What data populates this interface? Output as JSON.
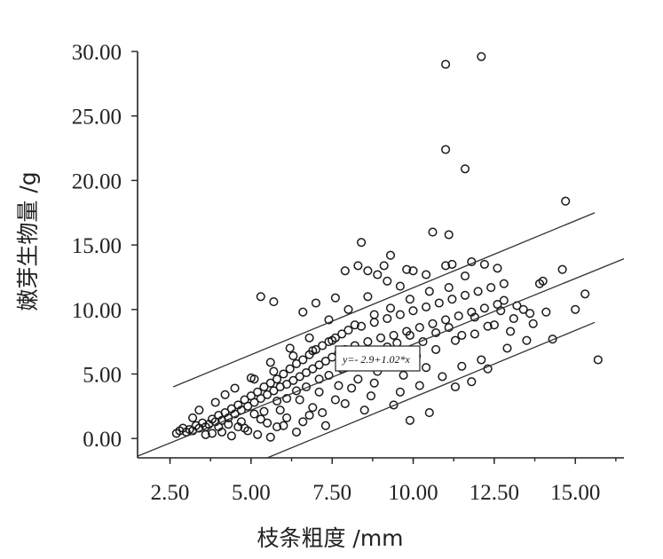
{
  "chart_data": {
    "type": "scatter",
    "title": "",
    "xlabel": "枝条粗度 /mm",
    "ylabel": "嫩芽生物量 /g",
    "xlim": [
      1.5,
      16.5
    ],
    "ylim": [
      -1.5,
      30.0
    ],
    "x_ticks": [
      "2.50",
      "5.00",
      "7.50",
      "10.00",
      "12.50",
      "15.00"
    ],
    "y_ticks": [
      "0.00",
      "5.00",
      "10.00",
      "15.00",
      "20.00",
      "25.00",
      "30.00"
    ],
    "grid": false,
    "legend": "none",
    "annotation": "y=- 2.9+1.02*x",
    "fit": {
      "intercept": -2.9,
      "slope": 1.02,
      "x_range": [
        1.5,
        16.5
      ]
    },
    "prediction_band": {
      "lower": {
        "x": [
          5.5,
          15.6
        ],
        "y": [
          -1.5,
          9.0
        ]
      },
      "upper": {
        "x": [
          2.6,
          15.6
        ],
        "y": [
          4.0,
          17.5
        ]
      }
    },
    "series": [
      {
        "points": [
          [
            2.7,
            0.4
          ],
          [
            2.8,
            0.6
          ],
          [
            2.9,
            0.8
          ],
          [
            3.0,
            0.5
          ],
          [
            3.1,
            0.7
          ],
          [
            3.2,
            0.6
          ],
          [
            3.3,
            1.0
          ],
          [
            3.4,
            0.8
          ],
          [
            3.5,
            1.2
          ],
          [
            3.6,
            0.9
          ],
          [
            3.7,
            1.1
          ],
          [
            3.8,
            1.5
          ],
          [
            3.9,
            1.3
          ],
          [
            4.0,
            1.8
          ],
          [
            4.1,
            1.4
          ],
          [
            4.2,
            2.0
          ],
          [
            4.3,
            1.6
          ],
          [
            4.4,
            2.3
          ],
          [
            4.5,
            1.9
          ],
          [
            4.6,
            2.6
          ],
          [
            4.7,
            2.2
          ],
          [
            4.8,
            3.0
          ],
          [
            4.9,
            2.5
          ],
          [
            5.0,
            3.3
          ],
          [
            5.1,
            2.8
          ],
          [
            5.2,
            3.6
          ],
          [
            5.3,
            3.1
          ],
          [
            5.4,
            4.0
          ],
          [
            5.5,
            3.4
          ],
          [
            5.6,
            4.3
          ],
          [
            5.7,
            3.7
          ],
          [
            5.8,
            4.6
          ],
          [
            5.9,
            4.0
          ],
          [
            6.0,
            5.0
          ],
          [
            6.1,
            4.2
          ],
          [
            6.2,
            5.4
          ],
          [
            6.3,
            4.5
          ],
          [
            6.4,
            5.8
          ],
          [
            6.5,
            4.8
          ],
          [
            6.6,
            6.1
          ],
          [
            6.7,
            5.1
          ],
          [
            6.8,
            6.5
          ],
          [
            6.9,
            5.4
          ],
          [
            7.0,
            6.9
          ],
          [
            7.1,
            5.7
          ],
          [
            7.2,
            7.2
          ],
          [
            7.3,
            6.0
          ],
          [
            7.4,
            7.5
          ],
          [
            7.5,
            6.3
          ],
          [
            7.6,
            7.8
          ],
          [
            7.7,
            6.6
          ],
          [
            7.8,
            8.1
          ],
          [
            7.9,
            6.9
          ],
          [
            8.0,
            8.4
          ],
          [
            8.2,
            7.2
          ],
          [
            8.4,
            8.7
          ],
          [
            8.6,
            7.5
          ],
          [
            8.8,
            9.0
          ],
          [
            9.0,
            7.8
          ],
          [
            9.2,
            9.3
          ],
          [
            9.4,
            8.0
          ],
          [
            9.6,
            9.6
          ],
          [
            9.8,
            8.3
          ],
          [
            10.0,
            9.9
          ],
          [
            10.2,
            8.6
          ],
          [
            10.4,
            10.2
          ],
          [
            10.6,
            8.9
          ],
          [
            10.8,
            10.5
          ],
          [
            11.0,
            9.2
          ],
          [
            11.2,
            10.8
          ],
          [
            11.4,
            9.5
          ],
          [
            11.6,
            11.1
          ],
          [
            11.8,
            9.8
          ],
          [
            12.0,
            11.4
          ],
          [
            12.2,
            10.1
          ],
          [
            12.4,
            11.7
          ],
          [
            12.6,
            10.4
          ],
          [
            12.8,
            12.0
          ],
          [
            3.4,
            2.2
          ],
          [
            3.8,
            0.4
          ],
          [
            4.2,
            3.4
          ],
          [
            4.6,
            0.9
          ],
          [
            5.0,
            4.7
          ],
          [
            5.3,
            1.5
          ],
          [
            5.6,
            5.9
          ],
          [
            5.9,
            2.2
          ],
          [
            6.2,
            7.0
          ],
          [
            6.5,
            3.0
          ],
          [
            6.8,
            7.8
          ],
          [
            7.1,
            3.6
          ],
          [
            7.4,
            9.2
          ],
          [
            7.7,
            4.1
          ],
          [
            8.0,
            10.0
          ],
          [
            8.3,
            4.6
          ],
          [
            8.6,
            11.0
          ],
          [
            8.9,
            5.2
          ],
          [
            9.2,
            12.2
          ],
          [
            9.5,
            5.8
          ],
          [
            9.8,
            13.1
          ],
          [
            10.1,
            6.4
          ],
          [
            10.4,
            12.7
          ],
          [
            10.7,
            6.9
          ],
          [
            11.0,
            13.4
          ],
          [
            11.3,
            7.6
          ],
          [
            11.6,
            12.6
          ],
          [
            11.9,
            8.1
          ],
          [
            12.2,
            13.5
          ],
          [
            12.5,
            8.8
          ],
          [
            12.8,
            10.7
          ],
          [
            13.1,
            9.3
          ],
          [
            13.4,
            10.0
          ],
          [
            13.7,
            8.9
          ],
          [
            14.0,
            12.2
          ],
          [
            14.3,
            7.7
          ],
          [
            14.6,
            13.1
          ],
          [
            14.7,
            18.4
          ],
          [
            15.0,
            10.0
          ],
          [
            15.3,
            11.2
          ],
          [
            15.7,
            6.1
          ],
          [
            14.1,
            9.8
          ],
          [
            13.9,
            12.0
          ],
          [
            13.0,
            8.3
          ],
          [
            12.3,
            5.4
          ],
          [
            11.8,
            4.4
          ],
          [
            11.3,
            4.0
          ],
          [
            10.5,
            2.0
          ],
          [
            9.9,
            1.4
          ],
          [
            9.4,
            2.6
          ],
          [
            8.5,
            2.2
          ],
          [
            7.3,
            1.0
          ],
          [
            6.8,
            1.8
          ],
          [
            6.4,
            0.5
          ],
          [
            5.8,
            0.9
          ],
          [
            5.2,
            0.3
          ],
          [
            5.3,
            11.0
          ],
          [
            5.7,
            10.6
          ],
          [
            7.9,
            13.0
          ],
          [
            8.3,
            13.4
          ],
          [
            8.4,
            15.2
          ],
          [
            8.6,
            13.0
          ],
          [
            9.1,
            13.4
          ],
          [
            9.3,
            14.2
          ],
          [
            10.0,
            13.0
          ],
          [
            10.6,
            16.0
          ],
          [
            11.1,
            15.8
          ],
          [
            11.0,
            22.4
          ],
          [
            11.6,
            20.9
          ],
          [
            11.0,
            29.0
          ],
          [
            12.1,
            29.6
          ],
          [
            11.2,
            13.5
          ],
          [
            11.8,
            13.7
          ],
          [
            12.6,
            13.2
          ],
          [
            7.0,
            10.5
          ],
          [
            6.6,
            9.8
          ],
          [
            7.6,
            10.9
          ],
          [
            9.6,
            11.8
          ],
          [
            8.9,
            12.7
          ],
          [
            4.4,
            0.2
          ],
          [
            4.9,
            0.6
          ],
          [
            5.5,
            1.2
          ],
          [
            6.1,
            1.6
          ],
          [
            6.9,
            2.4
          ],
          [
            7.6,
            3.0
          ],
          [
            8.1,
            3.9
          ],
          [
            8.8,
            4.3
          ],
          [
            9.7,
            4.9
          ],
          [
            10.4,
            5.5
          ],
          [
            3.2,
            1.6
          ],
          [
            3.9,
            2.8
          ],
          [
            4.5,
            3.9
          ],
          [
            5.1,
            4.6
          ],
          [
            5.7,
            5.2
          ],
          [
            6.3,
            6.4
          ],
          [
            6.9,
            6.8
          ],
          [
            7.5,
            7.6
          ],
          [
            8.2,
            8.8
          ],
          [
            8.8,
            9.6
          ],
          [
            9.3,
            10.1
          ],
          [
            9.9,
            10.8
          ],
          [
            10.5,
            11.4
          ],
          [
            11.1,
            11.7
          ],
          [
            4.0,
            0.9
          ],
          [
            4.3,
            1.1
          ],
          [
            4.7,
            1.3
          ],
          [
            5.1,
            1.9
          ],
          [
            5.4,
            2.1
          ],
          [
            5.8,
            2.9
          ],
          [
            6.1,
            3.1
          ],
          [
            6.4,
            3.7
          ],
          [
            6.7,
            4.0
          ],
          [
            7.1,
            4.6
          ],
          [
            7.4,
            4.9
          ],
          [
            7.8,
            5.4
          ],
          [
            8.1,
            5.7
          ],
          [
            8.5,
            6.3
          ],
          [
            8.8,
            6.6
          ],
          [
            9.2,
            7.1
          ],
          [
            9.5,
            7.4
          ],
          [
            9.9,
            8.0
          ],
          [
            10.3,
            7.5
          ],
          [
            10.7,
            8.2
          ],
          [
            11.1,
            8.6
          ],
          [
            11.5,
            8.0
          ],
          [
            11.9,
            9.4
          ],
          [
            12.3,
            8.7
          ],
          [
            12.7,
            9.9
          ],
          [
            13.2,
            10.3
          ],
          [
            13.6,
            9.7
          ],
          [
            3.6,
            0.3
          ],
          [
            4.1,
            0.5
          ],
          [
            4.8,
            0.8
          ],
          [
            5.6,
            0.1
          ],
          [
            6.0,
            1.0
          ],
          [
            6.6,
            1.3
          ],
          [
            7.2,
            2.0
          ],
          [
            7.9,
            2.7
          ],
          [
            8.7,
            3.3
          ],
          [
            9.6,
            3.6
          ],
          [
            10.2,
            4.1
          ],
          [
            10.9,
            4.8
          ],
          [
            11.5,
            5.6
          ],
          [
            12.1,
            6.1
          ],
          [
            12.9,
            7.0
          ],
          [
            13.5,
            7.6
          ]
        ]
      }
    ]
  }
}
